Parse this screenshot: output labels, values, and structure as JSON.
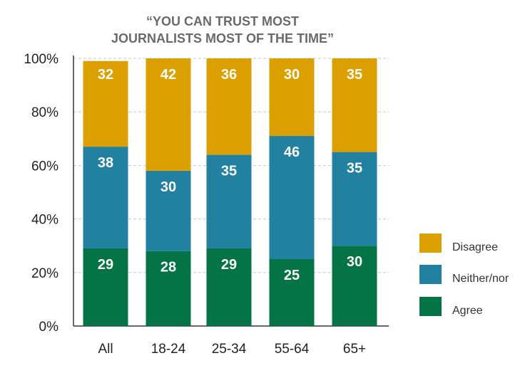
{
  "chart_data": {
    "type": "bar",
    "stacked": true,
    "title_lines": [
      "“YOU CAN TRUST MOST",
      "JOURNALISTS MOST OF THE TIME”"
    ],
    "categories": [
      "All",
      "18-24",
      "25-34",
      "55-64",
      "65+"
    ],
    "series": [
      {
        "name": "Agree",
        "color": "#047346",
        "values": [
          29,
          28,
          29,
          25,
          30
        ]
      },
      {
        "name": "Neither/nor",
        "color": "#2280A0",
        "values": [
          38,
          30,
          35,
          46,
          35
        ]
      },
      {
        "name": "Disagree",
        "color": "#DBA000",
        "values": [
          32,
          42,
          36,
          30,
          35
        ]
      }
    ],
    "ylim": [
      0,
      100
    ],
    "yticks": [
      "0%",
      "20%",
      "40%",
      "60%",
      "80%",
      "100%"
    ],
    "grid": "dashed horizontal",
    "legend_position": "right",
    "legend_order": [
      "Disagree",
      "Neither/nor",
      "Agree"
    ]
  }
}
